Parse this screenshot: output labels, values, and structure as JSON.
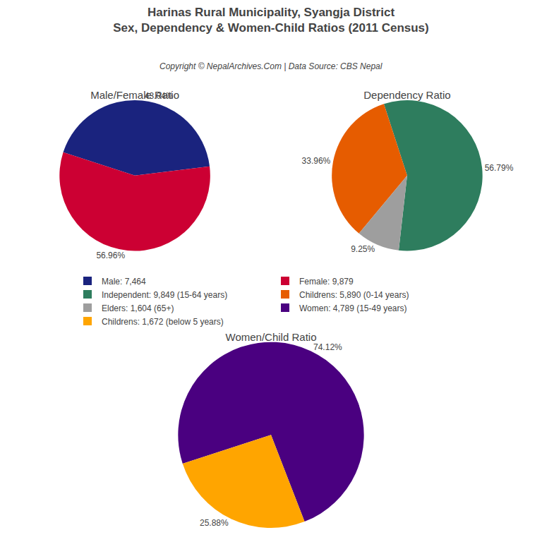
{
  "title": "Harinas Rural Municipality, Syangja District",
  "subtitle": "Sex, Dependency & Women-Child Ratios (2011 Census)",
  "annotations": [
    "Copyright © NepalArchives.Com | Data Source: CBS Nepal"
  ],
  "legend": "center",
  "chart_data": [
    {
      "type": "pie",
      "title": "Male/Female Ratio",
      "categories": [
        "Male: 7,464",
        "Female: 9,879"
      ],
      "values": [
        43.04,
        56.96
      ],
      "value_labels": [
        "43.04%",
        "56.96%"
      ],
      "colors": [
        "#1a237e",
        "#cc0033"
      ],
      "data_labels": true
    },
    {
      "type": "pie",
      "title": "Dependency Ratio",
      "categories": [
        "Independent: 9,849 (15-64 years)",
        "Childrens: 5,890 (0-14 years)",
        "Elders: 1,604 (65+)"
      ],
      "values": [
        56.79,
        33.96,
        9.25
      ],
      "value_labels": [
        "56.79%",
        "33.96%",
        "9.25%"
      ],
      "colors": [
        "#2e7d5e",
        "#e65c00",
        "#9e9e9e"
      ],
      "data_labels": true
    },
    {
      "type": "pie",
      "title": "Women/Child Ratio",
      "categories": [
        "Women: 4,789 (15-49 years)",
        "Childrens: 1,672 (below 5 years)"
      ],
      "values": [
        74.12,
        25.88
      ],
      "value_labels": [
        "74.12%",
        "25.88%"
      ],
      "colors": [
        "#4a0080",
        "#ffa500"
      ],
      "data_labels": true
    }
  ]
}
